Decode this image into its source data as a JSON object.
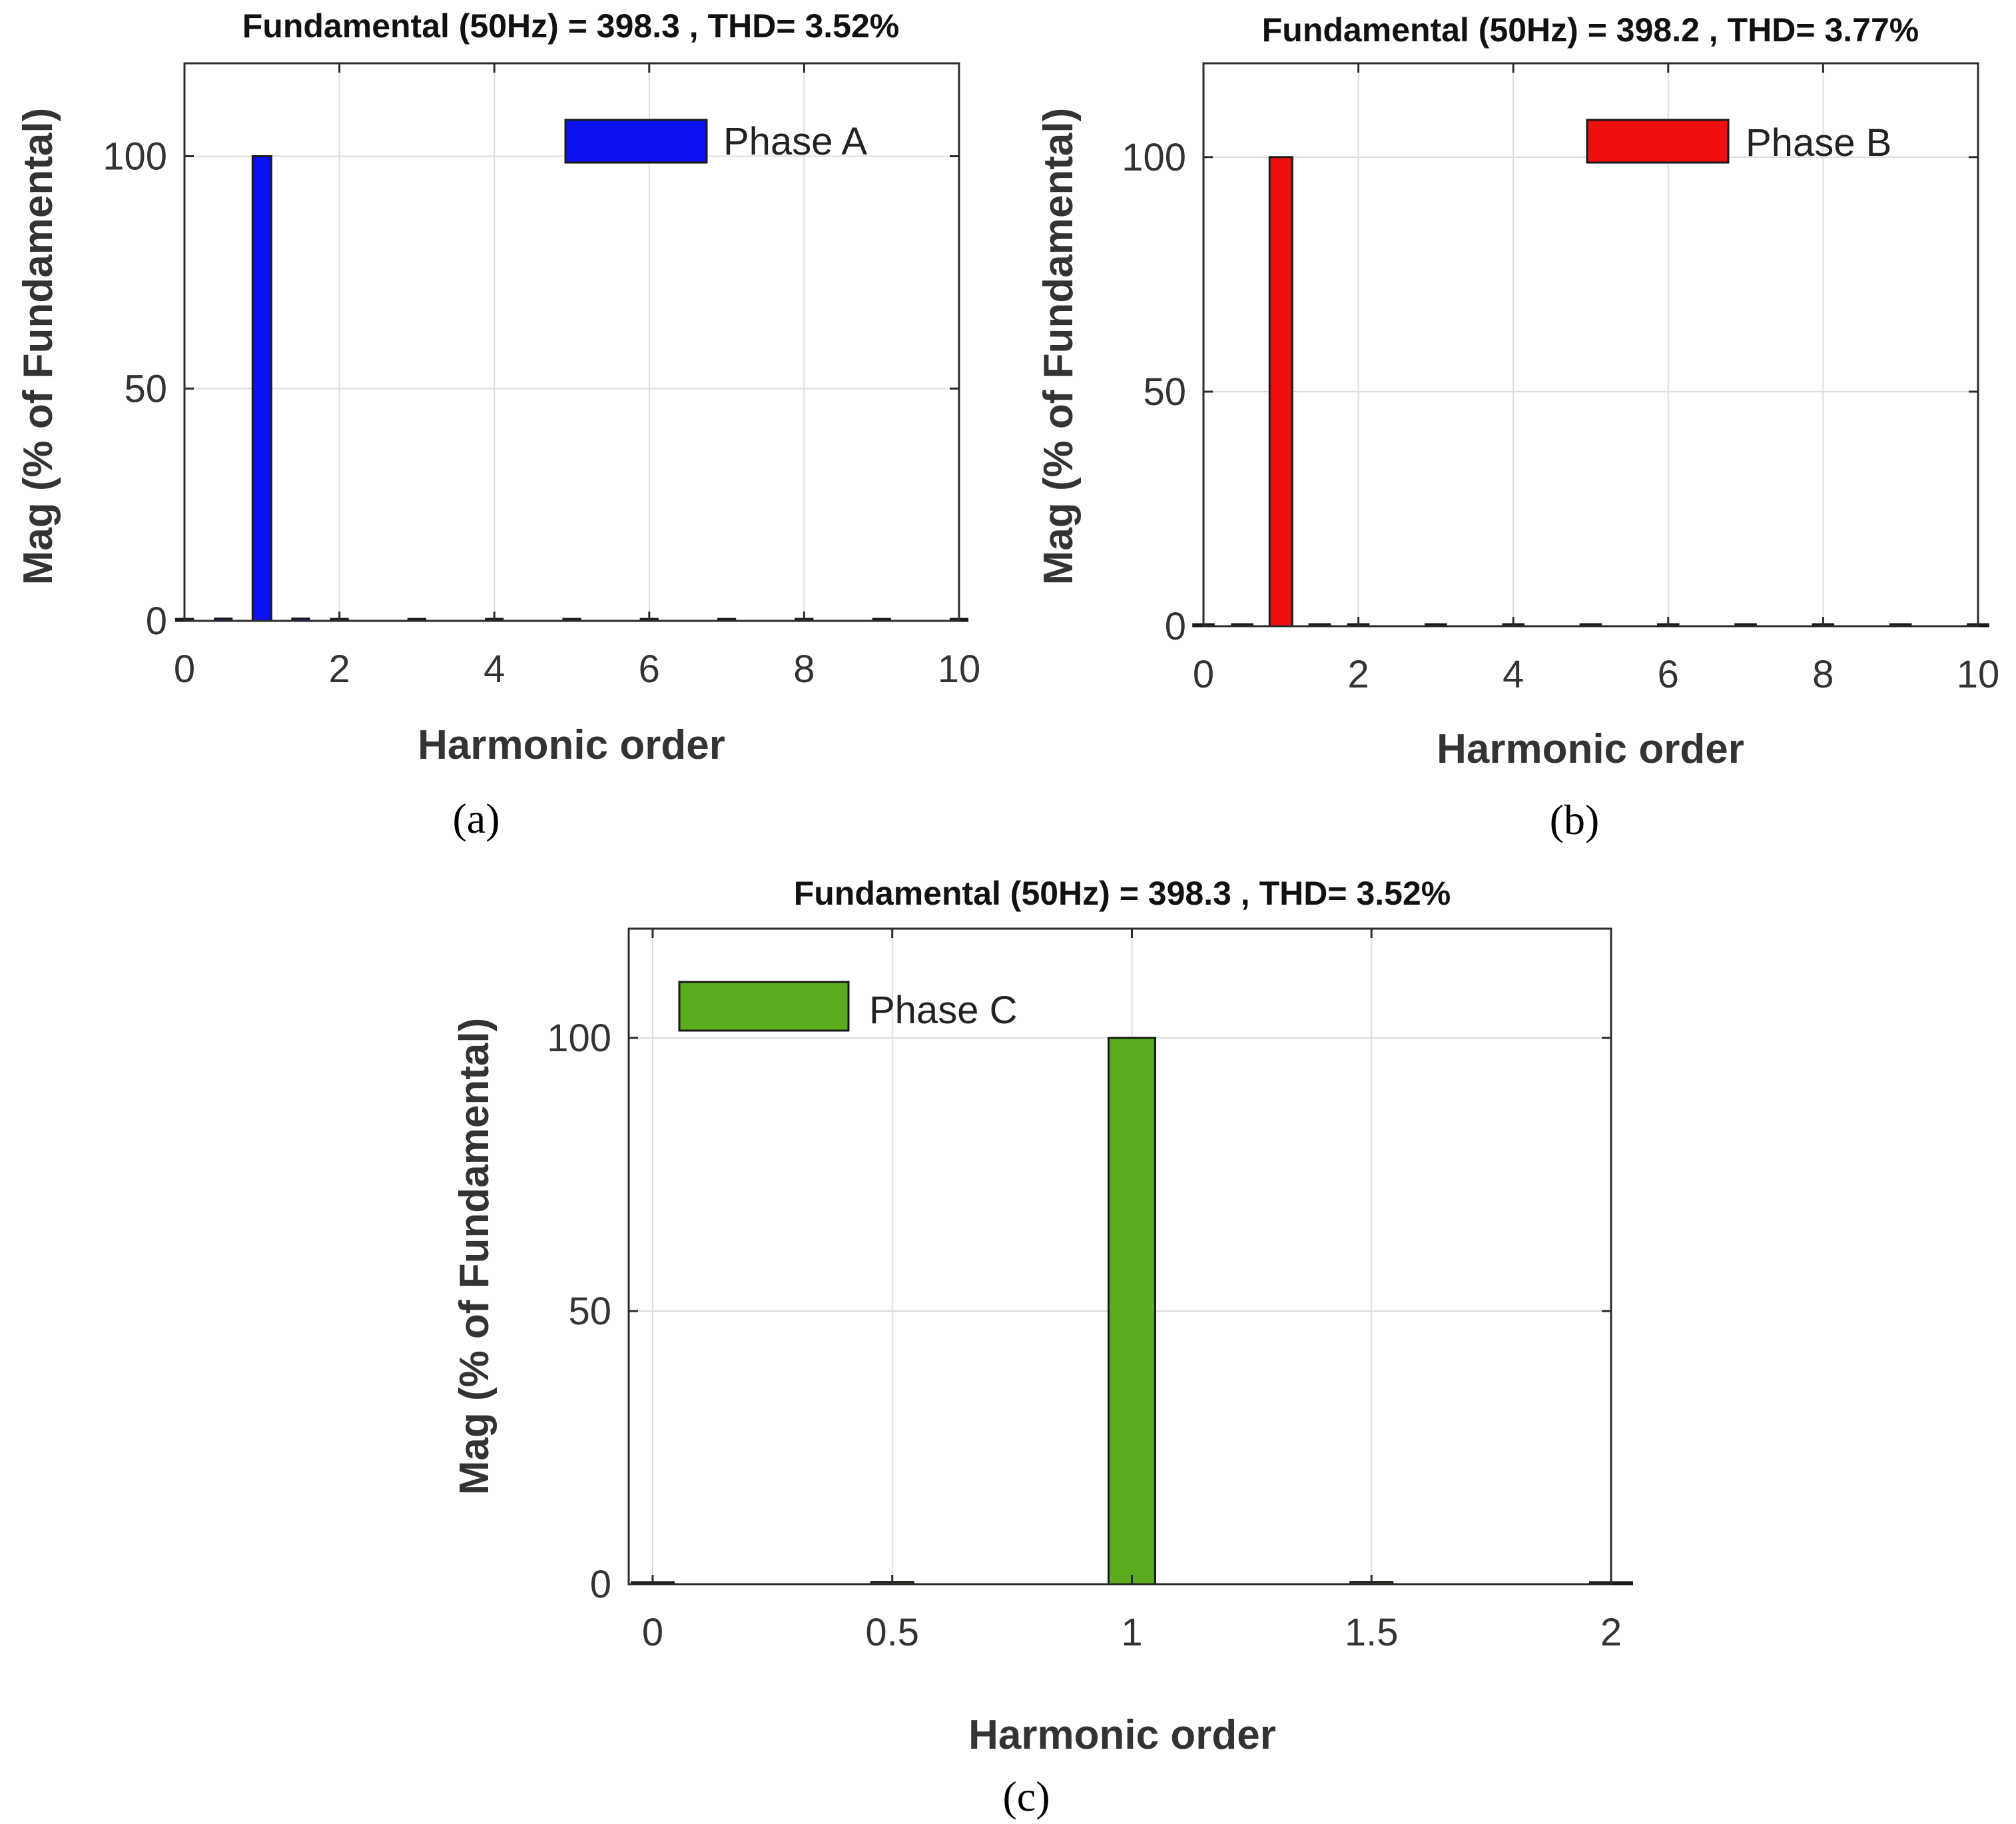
{
  "chart_data": [
    {
      "type": "bar",
      "title": "Fundamental (50Hz) = 398.3 , THD= 3.52%",
      "xlabel": "Harmonic order",
      "ylabel": "Mag (% of Fundamental)",
      "xlim": [
        0,
        10
      ],
      "ylim": [
        0,
        120
      ],
      "xticks": [
        "0",
        "2",
        "4",
        "6",
        "8",
        "10"
      ],
      "yticks": [
        "0",
        "50",
        "100"
      ],
      "grid": true,
      "legend_position": "top-right",
      "series": [
        {
          "name": "Phase A",
          "color": "#0a10f0",
          "x": [
            0,
            0.5,
            1,
            1.5,
            2,
            3,
            4,
            5,
            6,
            7,
            8,
            9,
            10
          ],
          "values": [
            0.2,
            0.5,
            100,
            0.5,
            0.2,
            0.1,
            0.1,
            0.1,
            0.1,
            0.1,
            0.1,
            0.1,
            0.1
          ]
        }
      ],
      "caption": "(a)"
    },
    {
      "type": "bar",
      "title": "Fundamental (50Hz) = 398.2 , THD= 3.77%",
      "xlabel": "Harmonic order",
      "ylabel": "Mag (% of Fundamental)",
      "xlim": [
        0,
        10
      ],
      "ylim": [
        0,
        120
      ],
      "xticks": [
        "0",
        "2",
        "4",
        "6",
        "8",
        "10"
      ],
      "yticks": [
        "0",
        "50",
        "100"
      ],
      "grid": true,
      "legend_position": "top-right",
      "series": [
        {
          "name": "Phase B",
          "color": "#f01010",
          "x": [
            0,
            0.5,
            1,
            1.5,
            2,
            3,
            4,
            5,
            6,
            7,
            8,
            9,
            10
          ],
          "values": [
            0.2,
            0.4,
            100,
            0.4,
            0.2,
            0.1,
            0.1,
            0.1,
            0.1,
            0.1,
            0.1,
            0.1,
            0.1
          ]
        }
      ],
      "caption": "(b)"
    },
    {
      "type": "bar",
      "title": "Fundamental (50Hz) = 398.3 , THD= 3.52%",
      "xlabel": "Harmonic order",
      "ylabel": "Mag (% of Fundamental)",
      "xlim": [
        -0.05,
        2
      ],
      "ylim": [
        0,
        120
      ],
      "xticks": [
        "0",
        "0.5",
        "1",
        "1.5",
        "2"
      ],
      "yticks": [
        "0",
        "50",
        "100"
      ],
      "grid": true,
      "legend_position": "top-left",
      "series": [
        {
          "name": "Phase C",
          "color": "#5aab1e",
          "x": [
            0,
            0.5,
            1,
            1.5,
            2
          ],
          "values": [
            0.3,
            0.4,
            100,
            0.4,
            0.1
          ]
        }
      ],
      "caption": "(c)"
    }
  ]
}
